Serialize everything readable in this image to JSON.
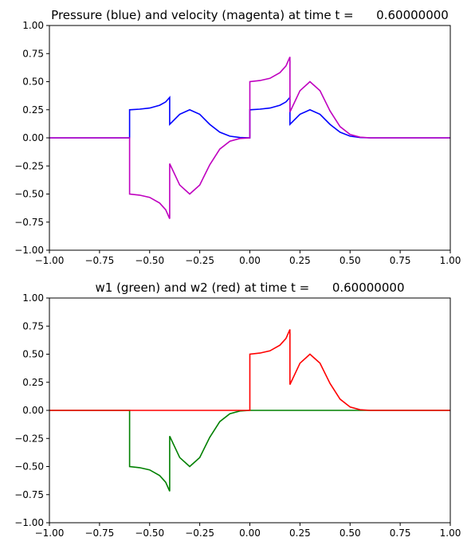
{
  "chart_data": [
    {
      "type": "line",
      "title": "Pressure (blue) and velocity (magenta) at time t =      0.60000000",
      "xlabel": "",
      "ylabel": "",
      "xlim": [
        -1.0,
        1.0
      ],
      "ylim": [
        -1.0,
        1.0
      ],
      "grid": false,
      "xticks": [
        "−1.00",
        "−0.75",
        "−0.50",
        "−0.25",
        "0.00",
        "0.25",
        "0.50",
        "0.75",
        "1.00"
      ],
      "yticks": [
        "−1.00",
        "−0.75",
        "−0.50",
        "−0.25",
        "0.00",
        "0.25",
        "0.50",
        "0.75",
        "1.00"
      ],
      "xtick_values": [
        -1.0,
        -0.75,
        -0.5,
        -0.25,
        0.0,
        0.25,
        0.5,
        0.75,
        1.0
      ],
      "ytick_values": [
        -1.0,
        -0.75,
        -0.5,
        -0.25,
        0.0,
        0.25,
        0.5,
        0.75,
        1.0
      ],
      "series": [
        {
          "color": "#0000ff",
          "x": [
            -1.0,
            -0.6,
            -0.6,
            -0.55,
            -0.5,
            -0.45,
            -0.42,
            -0.4,
            -0.4,
            -0.35,
            -0.3,
            -0.25,
            -0.2,
            -0.15,
            -0.1,
            -0.05,
            0.0,
            0.0,
            0.05,
            0.1,
            0.15,
            0.18,
            0.2,
            0.2,
            0.25,
            0.3,
            0.35,
            0.4,
            0.45,
            0.5,
            0.55,
            0.6,
            1.0
          ],
          "y": [
            0.0,
            0.0,
            0.25,
            0.255,
            0.265,
            0.29,
            0.32,
            0.36,
            0.12,
            0.21,
            0.25,
            0.21,
            0.12,
            0.05,
            0.015,
            0.003,
            0.0,
            0.25,
            0.255,
            0.265,
            0.29,
            0.32,
            0.36,
            0.12,
            0.21,
            0.25,
            0.21,
            0.12,
            0.05,
            0.015,
            0.003,
            0.0,
            0.0
          ]
        },
        {
          "color": "#bf00bf",
          "x": [
            -1.0,
            -0.6,
            -0.6,
            -0.55,
            -0.5,
            -0.45,
            -0.42,
            -0.4,
            -0.4,
            -0.35,
            -0.3,
            -0.25,
            -0.2,
            -0.15,
            -0.1,
            -0.05,
            0.0,
            0.0,
            0.05,
            0.1,
            0.15,
            0.18,
            0.2,
            0.2,
            0.25,
            0.3,
            0.35,
            0.4,
            0.45,
            0.5,
            0.55,
            0.6,
            1.0
          ],
          "y": [
            0.0,
            0.0,
            -0.5,
            -0.51,
            -0.53,
            -0.58,
            -0.64,
            -0.72,
            -0.23,
            -0.42,
            -0.5,
            -0.42,
            -0.24,
            -0.1,
            -0.03,
            -0.006,
            0.0,
            0.5,
            0.51,
            0.53,
            0.58,
            0.64,
            0.72,
            0.23,
            0.42,
            0.5,
            0.42,
            0.24,
            0.1,
            0.03,
            0.006,
            0.0,
            0.0
          ]
        }
      ]
    },
    {
      "type": "line",
      "title": "w1 (green) and w2 (red) at time t =      0.60000000",
      "xlabel": "",
      "ylabel": "",
      "xlim": [
        -1.0,
        1.0
      ],
      "ylim": [
        -1.0,
        1.0
      ],
      "grid": false,
      "xticks": [
        "−1.00",
        "−0.75",
        "−0.50",
        "−0.25",
        "0.00",
        "0.25",
        "0.50",
        "0.75",
        "1.00"
      ],
      "yticks": [
        "−1.00",
        "−0.75",
        "−0.50",
        "−0.25",
        "0.00",
        "0.25",
        "0.50",
        "0.75",
        "1.00"
      ],
      "xtick_values": [
        -1.0,
        -0.75,
        -0.5,
        -0.25,
        0.0,
        0.25,
        0.5,
        0.75,
        1.0
      ],
      "ytick_values": [
        -1.0,
        -0.75,
        -0.5,
        -0.25,
        0.0,
        0.25,
        0.5,
        0.75,
        1.0
      ],
      "series": [
        {
          "color": "#008000",
          "x": [
            -1.0,
            -0.6,
            -0.6,
            -0.55,
            -0.5,
            -0.45,
            -0.42,
            -0.4,
            -0.4,
            -0.35,
            -0.3,
            -0.25,
            -0.2,
            -0.15,
            -0.1,
            -0.05,
            0.0,
            1.0
          ],
          "y": [
            0.0,
            0.0,
            -0.5,
            -0.51,
            -0.53,
            -0.58,
            -0.64,
            -0.72,
            -0.23,
            -0.42,
            -0.5,
            -0.42,
            -0.24,
            -0.1,
            -0.03,
            -0.006,
            0.0,
            0.0
          ]
        },
        {
          "color": "#ff0000",
          "x": [
            -1.0,
            0.0,
            0.0,
            0.05,
            0.1,
            0.15,
            0.18,
            0.2,
            0.2,
            0.25,
            0.3,
            0.35,
            0.4,
            0.45,
            0.5,
            0.55,
            0.6,
            1.0
          ],
          "y": [
            0.0,
            0.0,
            0.5,
            0.51,
            0.53,
            0.58,
            0.64,
            0.72,
            0.23,
            0.42,
            0.5,
            0.42,
            0.24,
            0.1,
            0.03,
            0.006,
            0.0,
            0.0
          ]
        }
      ]
    }
  ]
}
